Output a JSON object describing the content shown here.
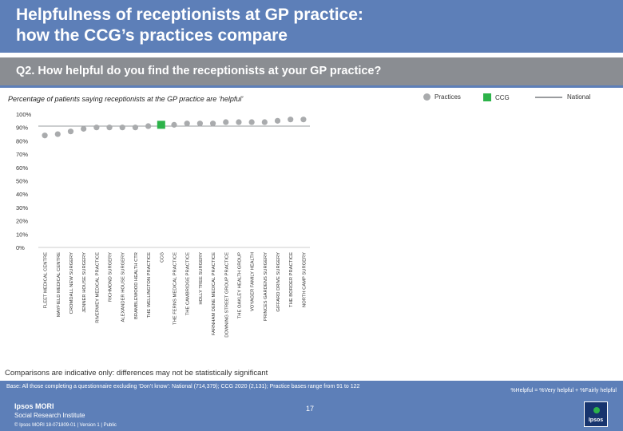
{
  "header": {
    "title_line1": "Helpfulness of receptionists at GP practice:",
    "title_line2": "how the CCG’s practices compare"
  },
  "question": "Q2. How helpful do you find the receptionists at your GP practice?",
  "subtitle": "Percentage of patients saying receptionists at the GP practice are ‘helpful’",
  "legend": {
    "practices": "Practices",
    "ccg": "CCG",
    "national": "National"
  },
  "colors": {
    "header": "#5d7fb8",
    "question_bar": "#8a8d92",
    "practice_dot": "#a9abad",
    "ccg_square": "#2db34a",
    "national_line": "#9a9c9f"
  },
  "chart_data": {
    "type": "scatter",
    "yticks": [
      "100%",
      "90%",
      "80%",
      "70%",
      "60%",
      "50%",
      "40%",
      "30%",
      "20%",
      "10%",
      "0%"
    ],
    "ylim": [
      0,
      100
    ],
    "categories": [
      "FLEET MEDICAL CENTRE",
      "MAYFIELD MEDICAL CENTRE",
      "CROMDALL NEW SURGERY",
      "JENNER HOUSE SURGERY",
      "RIVERWEY MEDICAL PRACTICE",
      "RICHMOND SURGERY",
      "ALEXANDER HOUSE SURGERY",
      "BRAMBLEWOOD HEALTH CTR",
      "THE WELLINGTON PRACTICE",
      "CCG",
      "THE FERNS MEDICAL PRACTICE",
      "THE CAMBRIDGE PRACTICE",
      "HOLLY TREE SURGERY",
      "FARNHAM DENE MEDICAL PRACTICE",
      "DOWNING STREET GROUP PRACTICE",
      "THE OAKLEY HEALTH GROUP",
      "VOYAGER FAMILY HEALTH",
      "PRINCES GARDENS SURGERY",
      "GIFFARD DRIVE SURGERY",
      "THE BORDER PRACTICE",
      "NORTH CAMP SURGERY"
    ],
    "values": [
      84,
      85,
      87,
      89,
      90,
      90,
      90,
      90,
      91,
      92,
      92,
      93,
      93,
      93,
      94,
      94,
      94,
      94,
      95,
      96,
      96
    ],
    "ccg_index": 9
  },
  "footer": {
    "note": "Comparisons are indicative only: differences may not be statistically significant",
    "base": "Base: All those completing a questionnaire excluding ‘Don’t know’: National (714,379); CCG 2020 (2,131); Practice bases range from 91 to 122",
    "formula": "%Helpful = %Very helpful + %Fairly helpful",
    "logo_line1": "Ipsos MORI",
    "logo_line2": "Social Research Institute",
    "copyright": "© Ipsos MORI      18-071809-01 | Version 1 | Public",
    "page_number": "17",
    "ipsos_logo": "Ipsos"
  }
}
